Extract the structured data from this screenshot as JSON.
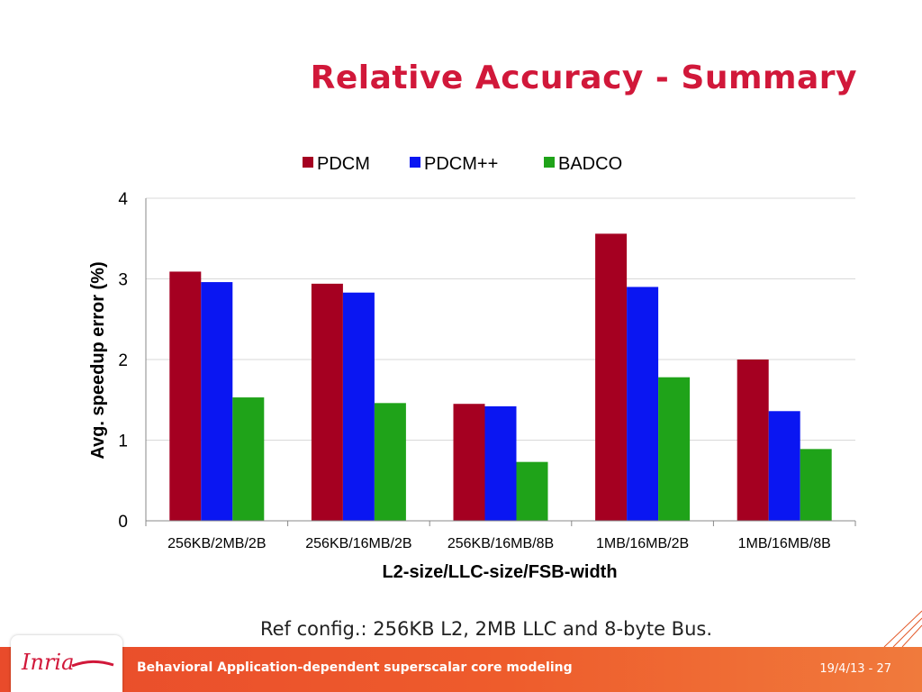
{
  "slide": {
    "title": "Relative Accuracy - Summary",
    "caption": "Ref config.: 256KB L2, 2MB LLC and 8-byte Bus.",
    "footer_text": "Behavioral Application-dependent superscalar core modeling",
    "footer_date": "19/4/13 - 27",
    "logo_text": "Inria"
  },
  "colors": {
    "title": "#d1183a",
    "footer": "#ee5c2c",
    "PDCM": "#a50021",
    "PDCM++": "#0a16f2",
    "BADCO": "#1fa319"
  },
  "chart_data": {
    "type": "bar",
    "categories": [
      "256KB/2MB/2B",
      "256KB/16MB/2B",
      "256KB/16MB/8B",
      "1MB/16MB/2B",
      "1MB/16MB/8B"
    ],
    "series": [
      {
        "name": "PDCM",
        "values": [
          3.09,
          2.94,
          1.45,
          3.56,
          2.0
        ]
      },
      {
        "name": "PDCM++",
        "values": [
          2.96,
          2.83,
          1.42,
          2.9,
          1.36
        ]
      },
      {
        "name": "BADCO",
        "values": [
          1.53,
          1.46,
          0.73,
          1.78,
          0.89
        ]
      }
    ],
    "xlabel": "L2-size/LLC-size/FSB-width",
    "ylabel": "Avg. speedup error (%)",
    "ylim": [
      0,
      4
    ],
    "yticks": [
      "0",
      "1",
      "2",
      "3",
      "4"
    ],
    "grid": true,
    "legend": "top"
  }
}
